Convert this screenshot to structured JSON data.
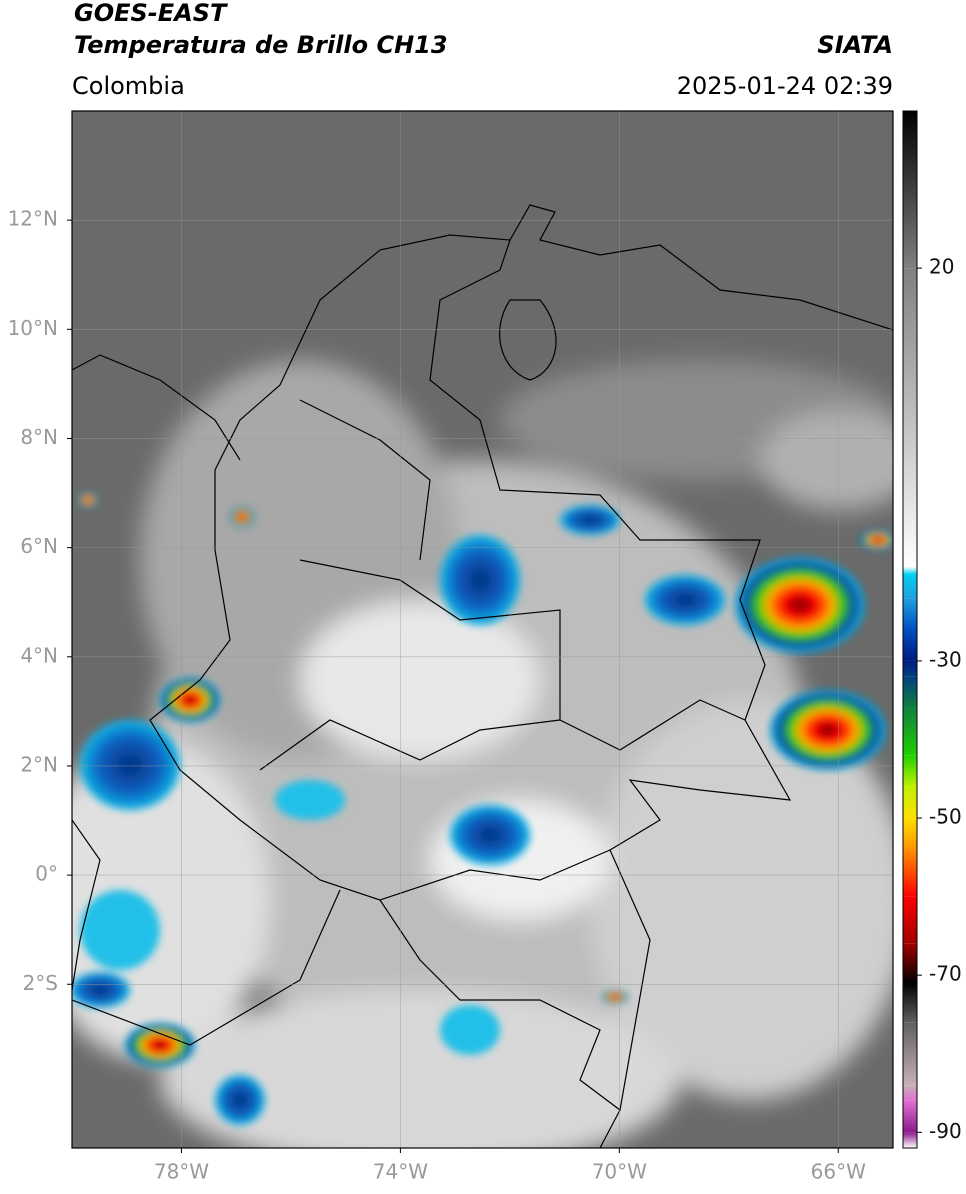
{
  "header": {
    "title_lines": [
      "GOES-EAST",
      "Temperatura de Brillo CH13"
    ],
    "source": "SIATA",
    "region": "Colombia",
    "datetime": "2025-01-24 02:39"
  },
  "map": {
    "xlim": [
      -80,
      -65
    ],
    "ylim": [
      -5,
      14
    ],
    "xticks": [
      {
        "value": -78,
        "label": "78°W"
      },
      {
        "value": -74,
        "label": "74°W"
      },
      {
        "value": -70,
        "label": "70°W"
      },
      {
        "value": -66,
        "label": "66°W"
      }
    ],
    "yticks": [
      {
        "value": 12,
        "label": "12°N"
      },
      {
        "value": 10,
        "label": "10°N"
      },
      {
        "value": 8,
        "label": "8°N"
      },
      {
        "value": 6,
        "label": "6°N"
      },
      {
        "value": 4,
        "label": "4°N"
      },
      {
        "value": 2,
        "label": "2°N"
      },
      {
        "value": 0,
        "label": "0°"
      },
      {
        "value": -2,
        "label": "2°S"
      }
    ],
    "grid": true
  },
  "colorbar": {
    "lim": [
      -92,
      40
    ],
    "ticks": [
      20,
      -30,
      -50,
      -70,
      -90
    ],
    "stops": [
      {
        "value": -92,
        "color": "#ffffff"
      },
      {
        "value": -90,
        "color": "#8b1a8b"
      },
      {
        "value": -86,
        "color": "#e070d0"
      },
      {
        "value": -84,
        "color": "#c8b0b8"
      },
      {
        "value": -76,
        "color": "#606060"
      },
      {
        "value": -71,
        "color": "#000000"
      },
      {
        "value": -66,
        "color": "#a00000"
      },
      {
        "value": -60,
        "color": "#ff0000"
      },
      {
        "value": -54,
        "color": "#ff9000"
      },
      {
        "value": -50,
        "color": "#ffe000"
      },
      {
        "value": -46,
        "color": "#c0f000"
      },
      {
        "value": -42,
        "color": "#20d000"
      },
      {
        "value": -36,
        "color": "#108040"
      },
      {
        "value": -32,
        "color": "#004080"
      },
      {
        "value": -30,
        "color": "#001a80"
      },
      {
        "value": -26,
        "color": "#0050c0"
      },
      {
        "value": -22,
        "color": "#20a0e0"
      },
      {
        "value": -19,
        "color": "#00d0f0"
      },
      {
        "value": -18,
        "color": "#ffffff"
      },
      {
        "value": 20,
        "color": "#808080"
      },
      {
        "value": 40,
        "color": "#000000"
      }
    ]
  }
}
